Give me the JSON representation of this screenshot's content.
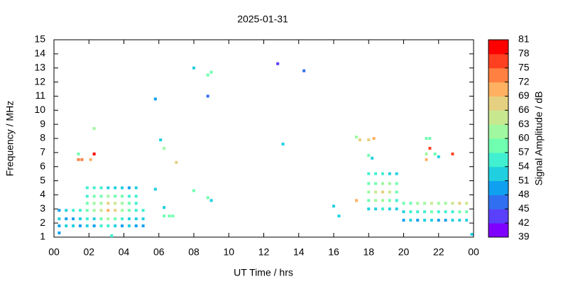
{
  "chart_data": {
    "type": "scatter",
    "title": "2025-01-31",
    "xlabel": "UT Time / hrs",
    "ylabel": "Frequency / MHz",
    "colorbar_label": "Signal Amplitude / dB",
    "xlim": [
      0,
      24
    ],
    "xticks": [
      {
        "value": 0,
        "label": "00"
      },
      {
        "value": 2,
        "label": "02"
      },
      {
        "value": 4,
        "label": "04"
      },
      {
        "value": 6,
        "label": "06"
      },
      {
        "value": 8,
        "label": "08"
      },
      10,
      12,
      14,
      16,
      18,
      20,
      22,
      {
        "value": 24,
        "label": "00"
      }
    ],
    "ylim": [
      1,
      15
    ],
    "yticks": [
      1,
      2,
      3,
      4,
      5,
      6,
      7,
      8,
      9,
      10,
      11,
      12,
      13,
      14,
      15
    ],
    "clim": [
      39,
      81
    ],
    "cticks": [
      39,
      42,
      45,
      48,
      51,
      54,
      57,
      60,
      63,
      66,
      69,
      72,
      75,
      78,
      81
    ],
    "colors": [
      "#8000ff",
      "#5a40fb",
      "#3070f0",
      "#10a0f0",
      "#20d0e0",
      "#40f0d0",
      "#70ffb0",
      "#a0f8a0",
      "#c8e890",
      "#e4d080",
      "#ffb060",
      "#ff8040",
      "#ff4020",
      "#ff0000"
    ],
    "x": [
      0.3,
      0.3,
      0.3,
      0.7,
      0.7,
      0.7,
      1.1,
      1.1,
      1.1,
      1.5,
      1.5,
      1.5,
      1.9,
      1.9,
      1.9,
      2.3,
      2.3,
      2.3,
      2.7,
      2.7,
      2.7,
      3.1,
      3.1,
      3.1,
      3.5,
      3.5,
      3.5,
      3.9,
      3.9,
      3.9,
      4.3,
      4.3,
      4.3,
      4.7,
      4.7,
      4.7,
      5.1,
      5.1,
      5.1,
      1.9,
      1.9,
      1.9,
      2.3,
      2.3,
      2.3,
      2.7,
      2.7,
      2.7,
      3.1,
      3.1,
      3.1,
      3.5,
      3.5,
      3.5,
      3.9,
      3.9,
      3.9,
      4.3,
      4.3,
      4.3,
      4.7,
      4.7,
      4.7,
      18.0,
      18.0,
      18.0,
      18.0,
      18.0,
      18.4,
      18.4,
      18.4,
      18.4,
      18.4,
      18.8,
      18.8,
      18.8,
      18.8,
      18.8,
      19.2,
      19.2,
      19.2,
      19.2,
      19.2,
      19.6,
      19.6,
      19.6,
      19.6,
      19.6,
      20.0,
      20.0,
      20.0,
      20.4,
      20.4,
      20.4,
      20.8,
      20.8,
      20.8,
      21.2,
      21.2,
      21.2,
      21.6,
      21.6,
      21.6,
      22.0,
      22.0,
      22.0,
      22.4,
      22.4,
      22.4,
      22.8,
      22.8,
      22.8,
      23.2,
      23.2,
      23.2,
      23.6,
      23.6,
      23.6,
      2.3,
      1.4,
      1.6,
      2.1,
      1.4,
      2.3,
      5.8,
      8.0,
      8.8,
      9.0,
      8.8,
      12.8,
      14.3,
      6.1,
      6.3,
      7.0,
      5.8,
      8.0,
      8.8,
      9.0,
      6.3,
      6.3,
      6.6,
      6.8,
      13.1,
      16.0,
      16.3,
      17.3,
      17.5,
      18.0,
      18.3,
      17.3,
      21.3,
      21.5,
      21.3,
      21.3,
      21.5,
      21.8,
      22.0,
      22.8,
      18.0,
      18.2,
      23.9,
      0.3,
      3.3
    ],
    "y": [
      1.8,
      2.3,
      2.9,
      1.8,
      2.3,
      2.9,
      1.8,
      2.3,
      2.9,
      1.8,
      2.3,
      2.9,
      1.8,
      2.3,
      2.9,
      1.8,
      2.3,
      2.9,
      1.8,
      2.3,
      2.9,
      1.8,
      2.3,
      2.9,
      1.8,
      2.3,
      2.9,
      1.8,
      2.3,
      2.9,
      1.8,
      2.3,
      2.9,
      1.8,
      2.3,
      2.9,
      1.8,
      2.3,
      2.9,
      3.4,
      3.9,
      4.5,
      3.4,
      3.9,
      4.5,
      3.4,
      3.9,
      4.5,
      3.4,
      3.9,
      4.5,
      3.4,
      3.9,
      4.5,
      3.4,
      3.9,
      4.5,
      3.4,
      3.9,
      4.5,
      3.4,
      3.9,
      4.5,
      3.0,
      3.6,
      4.2,
      4.8,
      5.5,
      3.0,
      3.6,
      4.2,
      4.8,
      5.5,
      3.0,
      3.6,
      4.2,
      4.8,
      5.5,
      3.0,
      3.6,
      4.2,
      4.8,
      5.5,
      3.0,
      3.6,
      4.2,
      4.8,
      5.5,
      2.2,
      2.8,
      3.4,
      2.2,
      2.8,
      3.4,
      2.2,
      2.8,
      3.4,
      2.2,
      2.8,
      3.4,
      2.2,
      2.8,
      3.4,
      2.2,
      2.8,
      3.4,
      2.2,
      2.8,
      3.4,
      2.2,
      2.8,
      3.4,
      2.2,
      2.8,
      3.4,
      2.2,
      2.8,
      3.4,
      6.9,
      6.5,
      6.5,
      6.5,
      6.9,
      8.7,
      10.8,
      13.0,
      12.5,
      12.7,
      11.0,
      13.3,
      12.8,
      7.9,
      7.3,
      6.3,
      4.4,
      4.3,
      3.8,
      3.6,
      3.1,
      2.5,
      2.5,
      2.5,
      7.6,
      3.2,
      2.5,
      8.1,
      7.9,
      7.9,
      8.0,
      3.6,
      8.0,
      8.0,
      6.9,
      6.5,
      7.3,
      6.9,
      6.7,
      6.9,
      6.8,
      6.6,
      1.2,
      1.3,
      1.1
    ],
    "values": [
      50,
      52,
      48,
      51,
      49,
      53,
      53,
      50,
      55,
      49,
      52,
      54,
      52,
      55,
      58,
      50,
      53,
      60,
      54,
      57,
      63,
      55,
      60,
      70,
      52,
      58,
      67,
      50,
      54,
      61,
      51,
      53,
      57,
      49,
      52,
      55,
      50,
      51,
      54,
      58,
      56,
      55,
      60,
      57,
      55,
      62,
      59,
      54,
      66,
      60,
      53,
      64,
      58,
      52,
      61,
      57,
      51,
      58,
      55,
      50,
      56,
      54,
      51,
      52,
      57,
      60,
      58,
      56,
      53,
      60,
      63,
      59,
      55,
      55,
      62,
      66,
      61,
      54,
      52,
      58,
      63,
      60,
      53,
      51,
      55,
      58,
      57,
      52,
      49,
      53,
      57,
      51,
      55,
      58,
      50,
      54,
      60,
      52,
      56,
      62,
      53,
      57,
      63,
      50,
      55,
      61,
      49,
      54,
      60,
      51,
      56,
      64,
      52,
      57,
      66,
      53,
      58,
      65,
      80,
      73,
      73,
      70,
      58,
      60,
      48,
      51,
      57,
      58,
      47,
      44,
      47,
      53,
      60,
      68,
      53,
      59,
      57,
      51,
      52,
      57,
      57,
      57,
      51,
      52,
      53,
      62,
      66,
      67,
      69,
      69,
      57,
      57,
      62,
      70,
      75,
      57,
      51,
      76,
      57,
      51,
      53,
      50,
      55
    ]
  }
}
